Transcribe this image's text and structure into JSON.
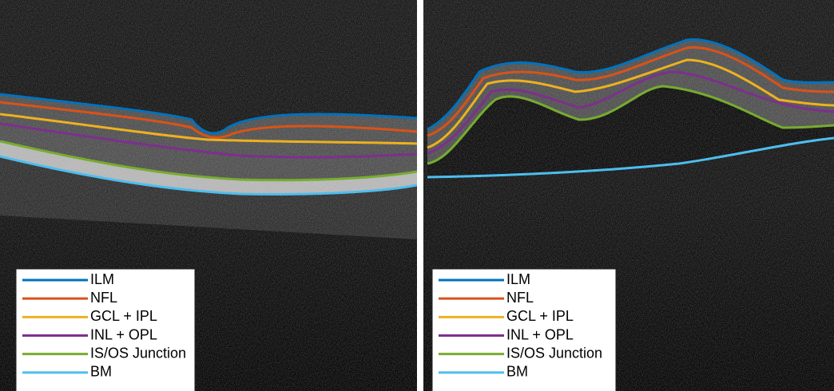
{
  "panels": [
    {
      "legend": [
        {
          "label": "ILM",
          "color": "#0072bd"
        },
        {
          "label": "NFL",
          "color": "#d95319"
        },
        {
          "label": "GCL + IPL",
          "color": "#edb120"
        },
        {
          "label": "INL + OPL",
          "color": "#7e2f8e"
        },
        {
          "label": "IS/OS Junction",
          "color": "#77ac30"
        },
        {
          "label": "BM",
          "color": "#4dbeee"
        }
      ]
    },
    {
      "legend": [
        {
          "label": "ILM",
          "color": "#0072bd"
        },
        {
          "label": "NFL",
          "color": "#d95319"
        },
        {
          "label": "GCL + IPL",
          "color": "#edb120"
        },
        {
          "label": "INL + OPL",
          "color": "#7e2f8e"
        },
        {
          "label": "IS/OS Junction",
          "color": "#77ac30"
        },
        {
          "label": "BM",
          "color": "#4dbeee"
        }
      ]
    }
  ]
}
